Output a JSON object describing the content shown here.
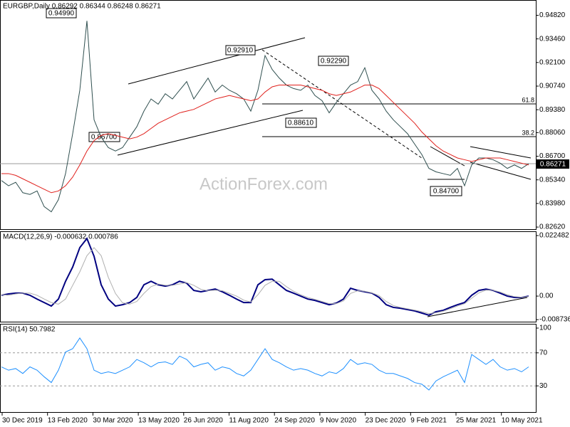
{
  "chart_data": [
    {
      "type": "line",
      "title": "EURGBP,Daily  0.86292 0.86344 0.86248 0.86271",
      "ylim": [
        0.825,
        0.957
      ],
      "yticks": [
        {
          "value": 0.9482,
          "label": "0.94820"
        },
        {
          "value": 0.9346,
          "label": "0.93460"
        },
        {
          "value": 0.921,
          "label": "0.92100"
        },
        {
          "value": 0.9074,
          "label": "0.90740"
        },
        {
          "value": 0.8938,
          "label": "0.89380"
        },
        {
          "value": 0.8806,
          "label": "0.88060"
        },
        {
          "value": 0.867,
          "label": "0.86700"
        },
        {
          "value": 0.8534,
          "label": "0.85340"
        },
        {
          "value": 0.8398,
          "label": "0.83980"
        },
        {
          "value": 0.8262,
          "label": "0.82620"
        }
      ],
      "series": [
        {
          "color": "#2f4f4f",
          "values": [
            0.853,
            0.85,
            0.852,
            0.846,
            0.845,
            0.847,
            0.838,
            0.835,
            0.842,
            0.857,
            0.88,
            0.905,
            0.945,
            0.888,
            0.878,
            0.872,
            0.87,
            0.872,
            0.878,
            0.884,
            0.893,
            0.9,
            0.897,
            0.903,
            0.9,
            0.905,
            0.91,
            0.9,
            0.906,
            0.912,
            0.904,
            0.908,
            0.905,
            0.903,
            0.9,
            0.893,
            0.905,
            0.925,
            0.917,
            0.912,
            0.908,
            0.906,
            0.905,
            0.908,
            0.902,
            0.899,
            0.892,
            0.898,
            0.903,
            0.908,
            0.91,
            0.918,
            0.905,
            0.9,
            0.893,
            0.888,
            0.884,
            0.88,
            0.874,
            0.868,
            0.86,
            0.858,
            0.857,
            0.856,
            0.86,
            0.85,
            0.862,
            0.866,
            0.866,
            0.865,
            0.863,
            0.86,
            0.862,
            0.86,
            0.8627
          ]
        },
        {
          "color": "#e0201c",
          "values": [
            0.857,
            0.857,
            0.856,
            0.854,
            0.852,
            0.85,
            0.848,
            0.846,
            0.847,
            0.85,
            0.855,
            0.862,
            0.87,
            0.876,
            0.879,
            0.88,
            0.879,
            0.878,
            0.877,
            0.878,
            0.88,
            0.883,
            0.886,
            0.888,
            0.89,
            0.892,
            0.893,
            0.894,
            0.896,
            0.898,
            0.9,
            0.901,
            0.902,
            0.901,
            0.9,
            0.899,
            0.9,
            0.904,
            0.907,
            0.908,
            0.908,
            0.908,
            0.908,
            0.907,
            0.906,
            0.905,
            0.903,
            0.902,
            0.903,
            0.904,
            0.906,
            0.908,
            0.908,
            0.906,
            0.902,
            0.898,
            0.894,
            0.89,
            0.886,
            0.881,
            0.877,
            0.873,
            0.87,
            0.868,
            0.866,
            0.865,
            0.864,
            0.865,
            0.866,
            0.866,
            0.866,
            0.865,
            0.864,
            0.863,
            0.862
          ]
        }
      ],
      "annotations": [
        "0.94990",
        "0.92910",
        "0.92290",
        "0.88610",
        "0.86700",
        "0.84700",
        "61.8",
        "38.2",
        "0.86271"
      ],
      "watermark": "ActionForex.com"
    },
    {
      "type": "line",
      "title": "MACD(12,26,9) -0.000632 0.000786",
      "ylim": [
        -0.0095,
        0.0238
      ],
      "yticks": [
        0.022482,
        {
          "value": 0,
          "label": "0.00"
        },
        -0.008736
      ],
      "series": [
        {
          "color": "#000080",
          "values": [
            0.0003,
            0.0008,
            0.0011,
            0.0011,
            0.0003,
            -0.0011,
            -0.0024,
            -0.0037,
            -0.0011,
            0.0055,
            0.0108,
            0.018,
            0.0214,
            0.0148,
            0.0042,
            -0.0011,
            -0.0037,
            -0.0032,
            -0.0024,
            -0.0005,
            0.0042,
            0.0055,
            0.0042,
            0.0037,
            0.0042,
            0.0055,
            0.0048,
            0.0021,
            0.0016,
            0.0021,
            0.0026,
            0.0016,
            0.0003,
            -0.0011,
            -0.0024,
            -0.0024,
            0.0042,
            0.0061,
            0.0063,
            0.0042,
            0.0021,
            0.0011,
            0.0,
            -0.0011,
            -0.0016,
            -0.0024,
            -0.0032,
            -0.0026,
            -0.0011,
            0.0029,
            0.0021,
            0.0016,
            0.0011,
            -0.0005,
            -0.0032,
            -0.0042,
            -0.0045,
            -0.005,
            -0.0055,
            -0.0063,
            -0.0071,
            -0.0058,
            -0.0053,
            -0.0042,
            -0.0032,
            -0.0024,
            0.0003,
            0.0021,
            0.0026,
            0.0021,
            0.0011,
            0.0,
            -0.0005,
            -0.0005,
            0.0
          ]
        },
        {
          "color": "#b0b0b0",
          "values": [
            0.0005,
            0.0003,
            0.0008,
            0.0011,
            0.0011,
            0.0003,
            -0.0011,
            -0.0024,
            -0.003,
            -0.0011,
            0.004,
            0.009,
            0.015,
            0.018,
            0.015,
            0.007,
            0.001,
            -0.0025,
            -0.003,
            -0.002,
            0.001,
            0.0035,
            0.0045,
            0.004,
            0.004,
            0.0045,
            0.005,
            0.004,
            0.0025,
            0.002,
            0.0022,
            0.002,
            0.001,
            0.0,
            -0.0015,
            -0.0022,
            0.0005,
            0.004,
            0.0055,
            0.0055,
            0.0035,
            0.0018,
            0.0005,
            -0.0005,
            -0.0012,
            -0.002,
            -0.0028,
            -0.0028,
            -0.0018,
            0.001,
            0.002,
            0.0018,
            0.0012,
            0.0002,
            -0.002,
            -0.0035,
            -0.0042,
            -0.0047,
            -0.0052,
            -0.0058,
            -0.0065,
            -0.0062,
            -0.0056,
            -0.0047,
            -0.0037,
            -0.0028,
            -0.0008,
            0.0012,
            0.0022,
            0.0022,
            0.0015,
            0.0005,
            -0.0002,
            -0.0004,
            -0.0002
          ]
        }
      ]
    },
    {
      "type": "line",
      "title": "RSI(14) 50.7982",
      "ylim": [
        0,
        100
      ],
      "yticks": [
        100,
        70,
        30
      ],
      "series": [
        {
          "color": "#1e90ff",
          "values": [
            53,
            49,
            51,
            45,
            53,
            49,
            41,
            34,
            49,
            71,
            75,
            88,
            75,
            49,
            45,
            47,
            45,
            49,
            53,
            62,
            58,
            53,
            58,
            59,
            56,
            66,
            62,
            53,
            56,
            58,
            49,
            53,
            51,
            45,
            42,
            49,
            62,
            75,
            62,
            58,
            53,
            49,
            51,
            49,
            45,
            42,
            47,
            45,
            51,
            62,
            56,
            58,
            56,
            49,
            45,
            45,
            42,
            39,
            34,
            32,
            25,
            36,
            41,
            45,
            49,
            34,
            68,
            62,
            56,
            62,
            53,
            49,
            51,
            47,
            53
          ]
        }
      ],
      "xtick_labels": [
        "30 Dec 2019",
        "13 Feb 2020",
        "30 Mar 2020",
        "13 May 2020",
        "26 Jun 2020",
        "11 Aug 2020",
        "24 Sep 2020",
        "9 Nov 2020",
        "23 Dec 2020",
        "9 Feb 2021",
        "25 Mar 2021",
        "10 May 2021"
      ]
    }
  ]
}
